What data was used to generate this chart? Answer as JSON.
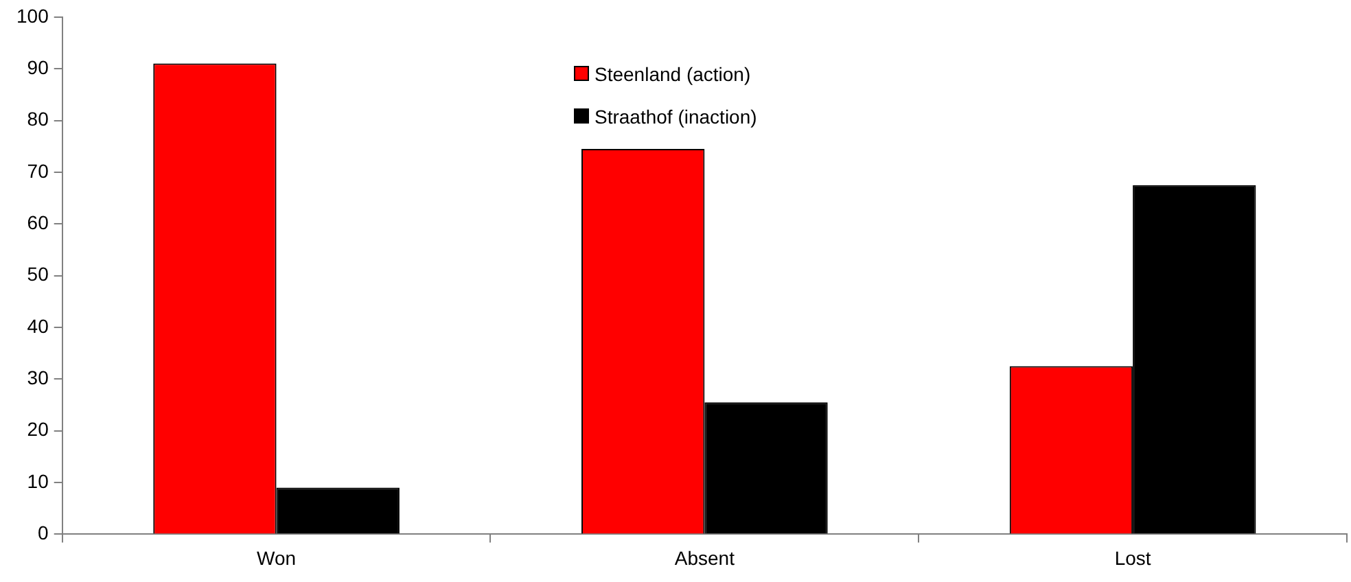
{
  "chart_data": {
    "type": "bar",
    "categories": [
      "Won",
      "Absent",
      "Lost"
    ],
    "series": [
      {
        "name": "Steenland (action)",
        "color": "#ff0000",
        "values": [
          91,
          74.5,
          32.5
        ]
      },
      {
        "name": "Straathof (inaction)",
        "color": "#000000",
        "values": [
          9,
          25.5,
          67.5
        ]
      }
    ],
    "ylim": [
      0,
      100
    ],
    "yticks": [
      0,
      10,
      20,
      30,
      40,
      50,
      60,
      70,
      80,
      90,
      100
    ],
    "grid": false,
    "legend": "top"
  }
}
